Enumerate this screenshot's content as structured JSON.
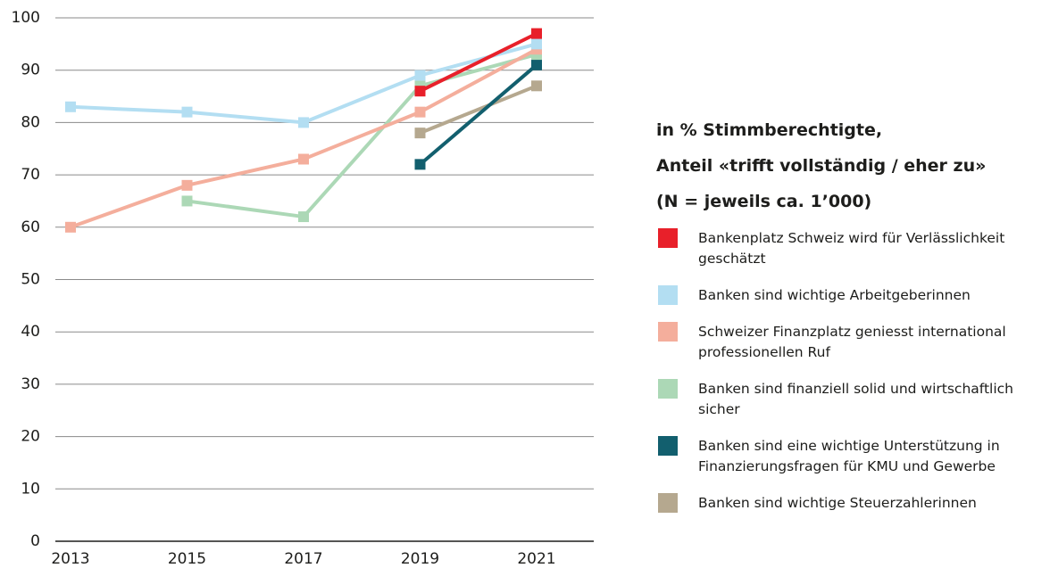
{
  "chart_data": {
    "type": "line",
    "legend_title": [
      "in % Stimmberechtigte,",
      "Anteil «trifft vollständig / eher zu»",
      "(N = jeweils ca. 1’000)"
    ],
    "categories": [
      "2013",
      "2015",
      "2017",
      "2019",
      "2021"
    ],
    "ylim": [
      0,
      100
    ],
    "yticks": [
      0,
      10,
      20,
      30,
      40,
      50,
      60,
      70,
      80,
      90,
      100
    ],
    "grid": true,
    "legend": "right",
    "series": [
      {
        "name": "Bankenplatz Schweiz wird für Verlässlichkeit geschätzt",
        "color": "#e8202a",
        "values": [
          null,
          null,
          null,
          86,
          97
        ]
      },
      {
        "name": "Banken sind wichtige Arbeitgeberinnen",
        "color": "#b3def2",
        "values": [
          83,
          82,
          80,
          89,
          95
        ]
      },
      {
        "name": "Schweizer Finanzplatz geniesst international professionellen Ruf",
        "color": "#f4ae9c",
        "values": [
          60,
          68,
          73,
          82,
          94
        ]
      },
      {
        "name": "Banken sind finanziell solid und wirtschaftlich sicher",
        "color": "#acd8b6",
        "values": [
          null,
          65,
          62,
          87,
          93
        ]
      },
      {
        "name": "Banken sind eine wichtige Unterstützung in Finanzierungsfragen für KMU und Gewerbe",
        "color": "#125f6e",
        "values": [
          null,
          null,
          null,
          72,
          91
        ]
      },
      {
        "name": "Banken sind wichtige Steuerzahlerinnen",
        "color": "#b5a88f",
        "values": [
          null,
          null,
          null,
          78,
          87
        ]
      }
    ]
  }
}
